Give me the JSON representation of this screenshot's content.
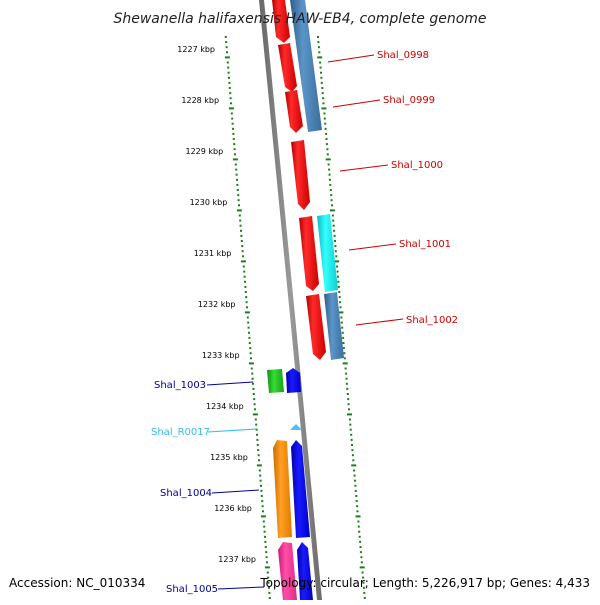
{
  "title": "Shewanella halifaxensis HAW-EB4, complete genome",
  "footer": {
    "accession": "Accession: NC_010334",
    "topology": "Topology: circular; Length: 5,226,917 bp; Genes: 4,433"
  },
  "colors": {
    "tick": "#1a7f1a",
    "backbone": "#888888",
    "label_red": "#cc0000",
    "label_blue": "#000099",
    "label_cyan": "#33bbee"
  },
  "ruler_labels": [
    "1227 kbp",
    "1228 kbp",
    "1229 kbp",
    "1230 kbp",
    "1231 kbp",
    "1232 kbp",
    "1233 kbp",
    "1234 kbp",
    "1235 kbp",
    "1236 kbp",
    "1237 kbp"
  ],
  "genes": [
    {
      "label": "Shal_0998",
      "color": "#ff1a1a",
      "label_color": "#cc0000"
    },
    {
      "label": "Shal_0999",
      "color": "#4682b4",
      "label_color": "#cc0000"
    },
    {
      "label": "Shal_1000",
      "color": "#ff1a1a",
      "label_color": "#cc0000"
    },
    {
      "label": "Shal_1001",
      "color": "#22e0e0",
      "label_color": "#cc0000"
    },
    {
      "label": "Shal_1002",
      "color": "#ff1a1a",
      "label_color": "#cc0000"
    },
    {
      "label": "Shal_1003",
      "color": "#22bb22",
      "label_color": "#000099"
    },
    {
      "label": "Shal_R0017",
      "color": "#55bbff",
      "label_color": "#33bbee"
    },
    {
      "label": "Shal_1004",
      "color": "#ff8c00",
      "label_color": "#000099"
    },
    {
      "label": "Shal_1005",
      "color": "#ff3399",
      "label_color": "#000099"
    }
  ]
}
